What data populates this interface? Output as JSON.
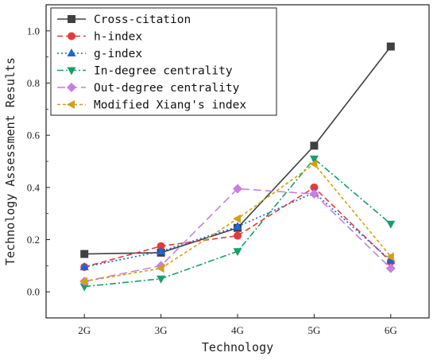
{
  "chart_data": {
    "type": "line",
    "title": "",
    "xlabel": "Technology",
    "ylabel": "Technology Assessment Results",
    "categories": [
      "2G",
      "3G",
      "4G",
      "5G",
      "6G"
    ],
    "ylim": [
      -0.1,
      1.1
    ],
    "yticks": [
      0.0,
      0.2,
      0.4,
      0.6,
      0.8,
      1.0
    ],
    "ytick_labels": [
      "0.0",
      "0.2",
      "0.4",
      "0.6",
      "0.8",
      "1.0"
    ],
    "grid": false,
    "legend_position": "top-left",
    "series": [
      {
        "name": "Cross-citation",
        "values": [
          0.145,
          0.15,
          0.245,
          0.56,
          0.94
        ],
        "color": "#404040",
        "marker": "square",
        "dash": "solid"
      },
      {
        "name": "h-index",
        "values": [
          0.095,
          0.175,
          0.215,
          0.4,
          0.115
        ],
        "color": "#e8393a",
        "marker": "circle",
        "dash": "dashed"
      },
      {
        "name": "g-index",
        "values": [
          0.095,
          0.155,
          0.25,
          0.38,
          0.12
        ],
        "color": "#1f63d8",
        "marker": "triangle-up",
        "dash": "dotted"
      },
      {
        "name": "In-degree centrality",
        "values": [
          0.02,
          0.05,
          0.155,
          0.51,
          0.26
        ],
        "color": "#1a9e6a",
        "marker": "triangle-down",
        "dash": "dashdot"
      },
      {
        "name": "Out-degree centrality",
        "values": [
          0.04,
          0.1,
          0.395,
          0.375,
          0.09
        ],
        "color": "#c77fe0",
        "marker": "diamond",
        "dash": "longdash"
      },
      {
        "name": "Modified Xiang's index",
        "values": [
          0.04,
          0.09,
          0.28,
          0.49,
          0.135
        ],
        "color": "#d4a017",
        "marker": "triangle-left",
        "dash": "shortdash"
      }
    ]
  }
}
